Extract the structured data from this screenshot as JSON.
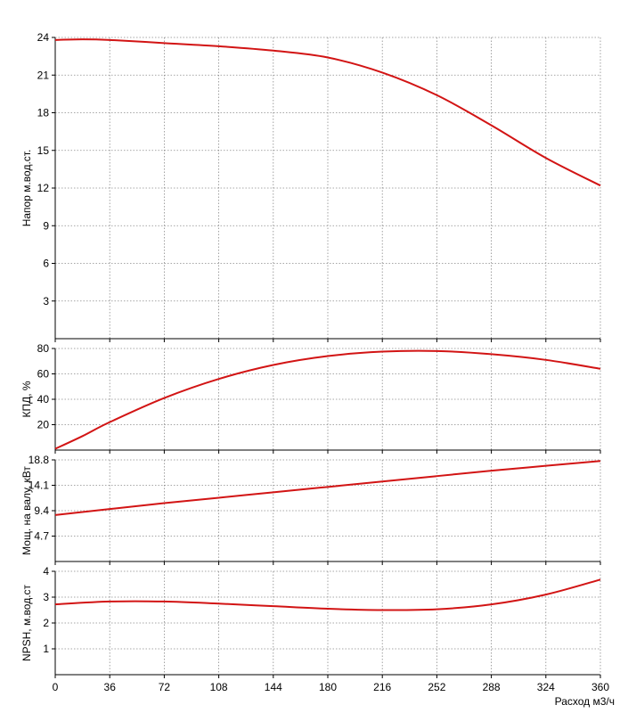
{
  "chart_data": [
    {
      "type": "line",
      "ylabel": "Напор м.вод.ст.",
      "xlim": [
        0,
        360
      ],
      "ylim": [
        0,
        24
      ],
      "yticks": [
        "3",
        "6",
        "9",
        "12",
        "15",
        "18",
        "21",
        "24"
      ],
      "grid": true,
      "series": [
        {
          "color": "#d21414",
          "x": [
            0,
            18,
            36,
            72,
            108,
            144,
            180,
            216,
            252,
            288,
            324,
            360
          ],
          "y": [
            23.8,
            23.85,
            23.8,
            23.55,
            23.3,
            22.95,
            22.4,
            21.2,
            19.4,
            17.0,
            14.4,
            12.2
          ]
        }
      ]
    },
    {
      "type": "line",
      "ylabel": "КПД, %",
      "xlim": [
        0,
        360
      ],
      "ylim": [
        0,
        80
      ],
      "yticks": [
        "20",
        "40",
        "60",
        "80"
      ],
      "grid": true,
      "series": [
        {
          "color": "#d21414",
          "x": [
            0,
            18,
            36,
            72,
            108,
            144,
            180,
            216,
            252,
            288,
            324,
            360
          ],
          "y": [
            1,
            11,
            22,
            41,
            56,
            67,
            74,
            77.5,
            78,
            75.5,
            71,
            64
          ]
        }
      ]
    },
    {
      "type": "line",
      "ylabel": "Мощ. на валу, кВт",
      "xlim": [
        0,
        360
      ],
      "ylim": [
        0,
        18.8
      ],
      "yticks": [
        "4.7",
        "9.4",
        "14.1",
        "18.8"
      ],
      "grid": true,
      "series": [
        {
          "color": "#d21414",
          "x": [
            0,
            36,
            72,
            108,
            144,
            180,
            216,
            252,
            288,
            324,
            360
          ],
          "y": [
            8.6,
            9.7,
            10.8,
            11.8,
            12.8,
            13.8,
            14.8,
            15.8,
            16.8,
            17.7,
            18.6
          ]
        }
      ]
    },
    {
      "type": "line",
      "ylabel": "NPSH, м.вод.ст",
      "xlabel": "Расход м3/ч",
      "xlim": [
        0,
        360
      ],
      "ylim": [
        0,
        4
      ],
      "yticks": [
        "1",
        "2",
        "3",
        "4"
      ],
      "xticks": [
        "0",
        "36",
        "72",
        "108",
        "144",
        "180",
        "216",
        "252",
        "288",
        "324",
        "360"
      ],
      "grid": true,
      "series": [
        {
          "color": "#d21414",
          "x": [
            0,
            36,
            72,
            108,
            144,
            180,
            216,
            252,
            288,
            324,
            360
          ],
          "y": [
            2.72,
            2.83,
            2.83,
            2.75,
            2.65,
            2.55,
            2.5,
            2.53,
            2.72,
            3.1,
            3.68
          ]
        }
      ]
    }
  ]
}
